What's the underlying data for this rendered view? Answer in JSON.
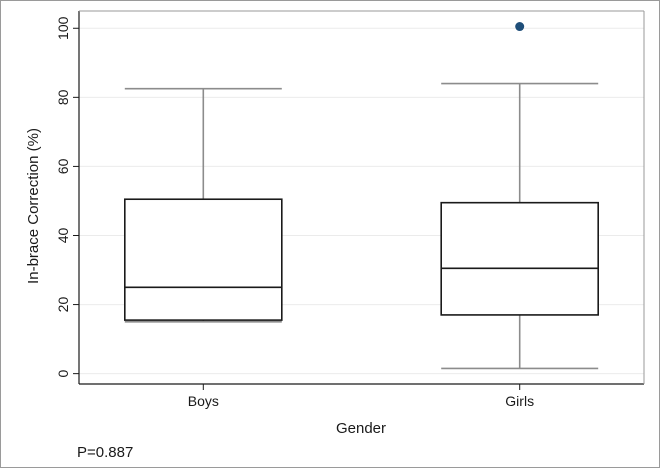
{
  "chart_data": {
    "type": "box",
    "title": "",
    "xlabel": "Gender",
    "ylabel": "In-brace Correction (%)",
    "categories": [
      "Boys",
      "Girls"
    ],
    "ylim": [
      -3,
      105
    ],
    "yticks": [
      0,
      20,
      40,
      60,
      80,
      100
    ],
    "grid": true,
    "boxes": [
      {
        "category": "Boys",
        "whisker_low": 15,
        "q1": 15.5,
        "median": 25,
        "q3": 50.5,
        "whisker_high": 82.5,
        "outliers": []
      },
      {
        "category": "Girls",
        "whisker_low": 1.5,
        "q1": 17,
        "median": 30.5,
        "q3": 49.5,
        "whisker_high": 84,
        "outliers": [
          100.5
        ]
      }
    ],
    "annotation": "P=0.887",
    "colors": {
      "box_line": "#1a1a1a",
      "whisker": "#8c8c8c",
      "outlier": "#1f4e79",
      "grid": "#ebebeb"
    }
  }
}
